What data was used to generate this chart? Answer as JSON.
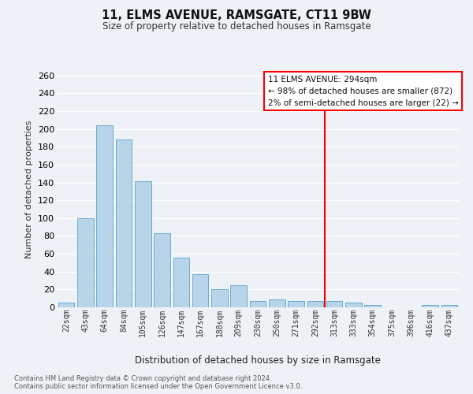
{
  "title": "11, ELMS AVENUE, RAMSGATE, CT11 9BW",
  "subtitle": "Size of property relative to detached houses in Ramsgate",
  "xlabel": "Distribution of detached houses by size in Ramsgate",
  "ylabel": "Number of detached properties",
  "bar_labels": [
    "22sqm",
    "43sqm",
    "64sqm",
    "84sqm",
    "105sqm",
    "126sqm",
    "147sqm",
    "167sqm",
    "188sqm",
    "209sqm",
    "230sqm",
    "250sqm",
    "271sqm",
    "292sqm",
    "313sqm",
    "333sqm",
    "354sqm",
    "375sqm",
    "396sqm",
    "416sqm",
    "437sqm"
  ],
  "bar_heights": [
    5,
    100,
    204,
    188,
    141,
    83,
    56,
    37,
    20,
    25,
    7,
    9,
    7,
    7,
    7,
    5,
    3,
    0,
    0,
    3,
    3
  ],
  "bar_color": "#b8d4e8",
  "bar_edge_color": "#6aaad4",
  "vline_color": "red",
  "ylim": [
    0,
    265
  ],
  "yticks": [
    0,
    20,
    40,
    60,
    80,
    100,
    120,
    140,
    160,
    180,
    200,
    220,
    240,
    260
  ],
  "property_name": "11 ELMS AVENUE: 294sqm",
  "annotation_line1": "← 98% of detached houses are smaller (872)",
  "annotation_line2": "2% of semi-detached houses are larger (22) →",
  "annotation_box_color": "white",
  "annotation_box_edge_color": "red",
  "footnote1": "Contains HM Land Registry data © Crown copyright and database right 2024.",
  "footnote2": "Contains public sector information licensed under the Open Government Licence v3.0.",
  "background_color": "#eef2f7",
  "grid_color": "white"
}
